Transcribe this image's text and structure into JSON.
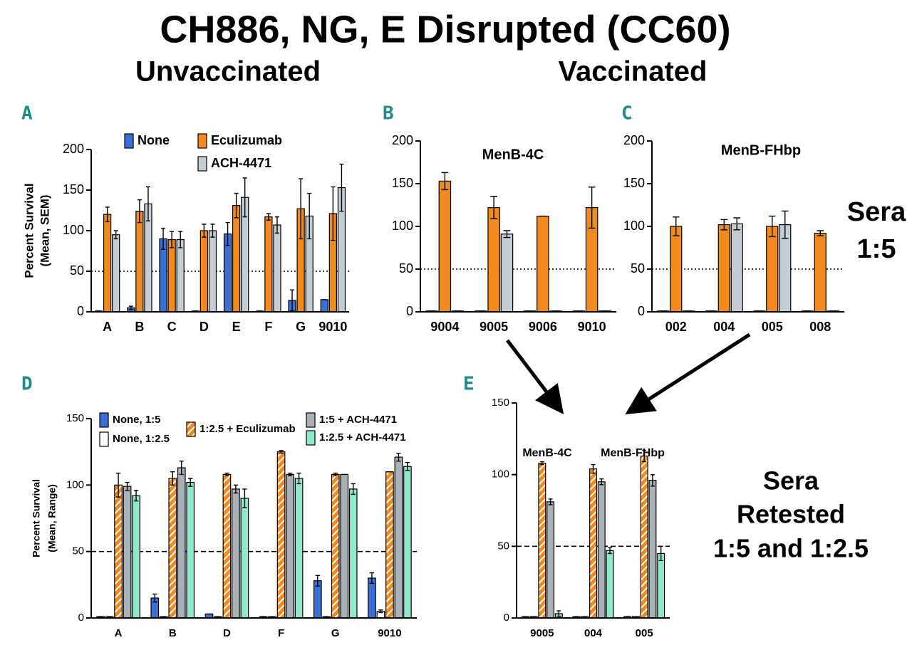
{
  "header": {
    "title": "CH886, NG, E Disrupted (CC60)",
    "left_heading": "Unvaccinated",
    "right_heading": "Vaccinated"
  },
  "side_notes": [
    {
      "lines": [
        "Sera",
        "1:5"
      ]
    },
    {
      "lines": [
        "Sera",
        "Retested",
        "1:5 and 1:2.5"
      ]
    }
  ],
  "chart_data": [
    {
      "type": "bar",
      "panel": "A",
      "ylabel": [
        "Percent Survival",
        "(Mean, SEM)"
      ],
      "categories": [
        "A",
        "B",
        "C",
        "D",
        "E",
        "F",
        "G",
        "9010"
      ],
      "ylim": [
        0,
        200
      ],
      "yticks": [
        0,
        50,
        100,
        150,
        200
      ],
      "refline": 50,
      "refline_style": "dotted",
      "series": [
        {
          "name": "None",
          "color": "#3a6fd8",
          "values": [
            1,
            5,
            90,
            1,
            96,
            1,
            14,
            15
          ],
          "errors": [
            0,
            2,
            13,
            0,
            14,
            0,
            13,
            0
          ]
        },
        {
          "name": "Eculizumab",
          "color": "#f28a1e",
          "values": [
            120,
            124,
            89,
            100,
            131,
            117,
            127,
            121
          ],
          "errors": [
            9,
            14,
            10,
            8,
            15,
            4,
            37,
            33
          ]
        },
        {
          "name": "ACH-4471",
          "color": "#c4ccd4",
          "values": [
            95,
            133,
            89,
            100,
            141,
            107,
            118,
            153
          ],
          "errors": [
            5,
            21,
            10,
            8,
            24,
            10,
            28,
            29
          ]
        }
      ]
    },
    {
      "type": "bar",
      "panel": "B",
      "title": "MenB-4C",
      "categories": [
        "9004",
        "9005",
        "9006",
        "9010"
      ],
      "ylim": [
        0,
        200
      ],
      "yticks": [
        0,
        50,
        100,
        150,
        200
      ],
      "refline": 50,
      "refline_style": "dotted",
      "series": [
        {
          "color": "#3a6fd8",
          "values": [
            1,
            1,
            1,
            1
          ],
          "errors": [
            0,
            0,
            0,
            0
          ]
        },
        {
          "color": "#f28a1e",
          "values": [
            153,
            122,
            112,
            122
          ],
          "errors": [
            10,
            13,
            0,
            24
          ]
        },
        {
          "color": "#c4ccd4",
          "values": [
            1,
            91,
            1,
            1
          ],
          "errors": [
            0,
            4,
            0,
            0
          ]
        }
      ]
    },
    {
      "type": "bar",
      "panel": "C",
      "title": "MenB-FHbp",
      "categories": [
        "002",
        "004",
        "005",
        "008"
      ],
      "ylim": [
        0,
        200
      ],
      "yticks": [
        0,
        50,
        100,
        150,
        200
      ],
      "refline": 50,
      "refline_style": "dotted",
      "series": [
        {
          "color": "#3a6fd8",
          "values": [
            1,
            1,
            1,
            1
          ],
          "errors": [
            0,
            0,
            0,
            0
          ]
        },
        {
          "color": "#f28a1e",
          "values": [
            100,
            102,
            100,
            92
          ],
          "errors": [
            11,
            6,
            12,
            3
          ]
        },
        {
          "color": "#c4ccd4",
          "values": [
            1,
            103,
            102,
            1
          ],
          "errors": [
            0,
            7,
            16,
            0
          ]
        }
      ]
    },
    {
      "type": "bar",
      "panel": "D",
      "ylabel": [
        "Percent Survival",
        "(Mean, Range)"
      ],
      "categories": [
        "A",
        "B",
        "D",
        "F",
        "G",
        "9010"
      ],
      "ylim": [
        0,
        150
      ],
      "yticks": [
        0,
        50,
        100,
        150
      ],
      "refline": 50,
      "refline_style": "dashed",
      "series": [
        {
          "name": "None, 1:5",
          "color": "#3a6fd8",
          "values": [
            1,
            15,
            3,
            1,
            28,
            30
          ],
          "errors": [
            0,
            3,
            0,
            0,
            4,
            4
          ]
        },
        {
          "name": "None, 1:2.5",
          "color": "#ffffff",
          "values": [
            1,
            1,
            1,
            1,
            1,
            5
          ],
          "errors": [
            0,
            0,
            0,
            0,
            0,
            1
          ]
        },
        {
          "name": "1:2.5 + Eculizumab",
          "color": "#f28a1e",
          "hatch": true,
          "values": [
            100,
            105,
            108,
            125,
            108,
            110
          ],
          "errors": [
            9,
            5,
            1,
            1,
            1,
            0
          ]
        },
        {
          "name": "1:5 + ACH-4471",
          "color": "#a9b1b9",
          "values": [
            99,
            113,
            97,
            108,
            108,
            121
          ],
          "errors": [
            3,
            5,
            3,
            1,
            0,
            3
          ]
        },
        {
          "name": "1:2.5 + ACH-4471",
          "color": "#8fe8c9",
          "values": [
            92,
            102,
            90,
            105,
            97,
            114
          ],
          "errors": [
            4,
            3,
            7,
            4,
            4,
            3
          ]
        }
      ]
    },
    {
      "type": "bar",
      "panel": "E",
      "annotations": [
        "MenB-4C",
        "MenB-FHbp"
      ],
      "categories": [
        "9005",
        "004",
        "005"
      ],
      "ylim": [
        0,
        150
      ],
      "yticks": [
        0,
        50,
        100,
        150
      ],
      "refline": 50,
      "refline_style": "dashed",
      "series": [
        {
          "color": "#f4f4f4",
          "values": [
            1,
            1,
            1
          ],
          "errors": [
            0,
            0,
            0
          ]
        },
        {
          "color": "#ffffff",
          "values": [
            1,
            1,
            1
          ],
          "errors": [
            0,
            0,
            0
          ]
        },
        {
          "color": "#f28a1e",
          "hatch": true,
          "values": [
            108,
            104,
            113
          ],
          "errors": [
            1,
            3,
            4
          ]
        },
        {
          "color": "#a9b1b9",
          "values": [
            81,
            95,
            96
          ],
          "errors": [
            2,
            2,
            4
          ]
        },
        {
          "color": "#8fe8c9",
          "values": [
            3,
            47,
            45
          ],
          "errors": [
            2,
            2,
            5
          ]
        }
      ]
    }
  ]
}
